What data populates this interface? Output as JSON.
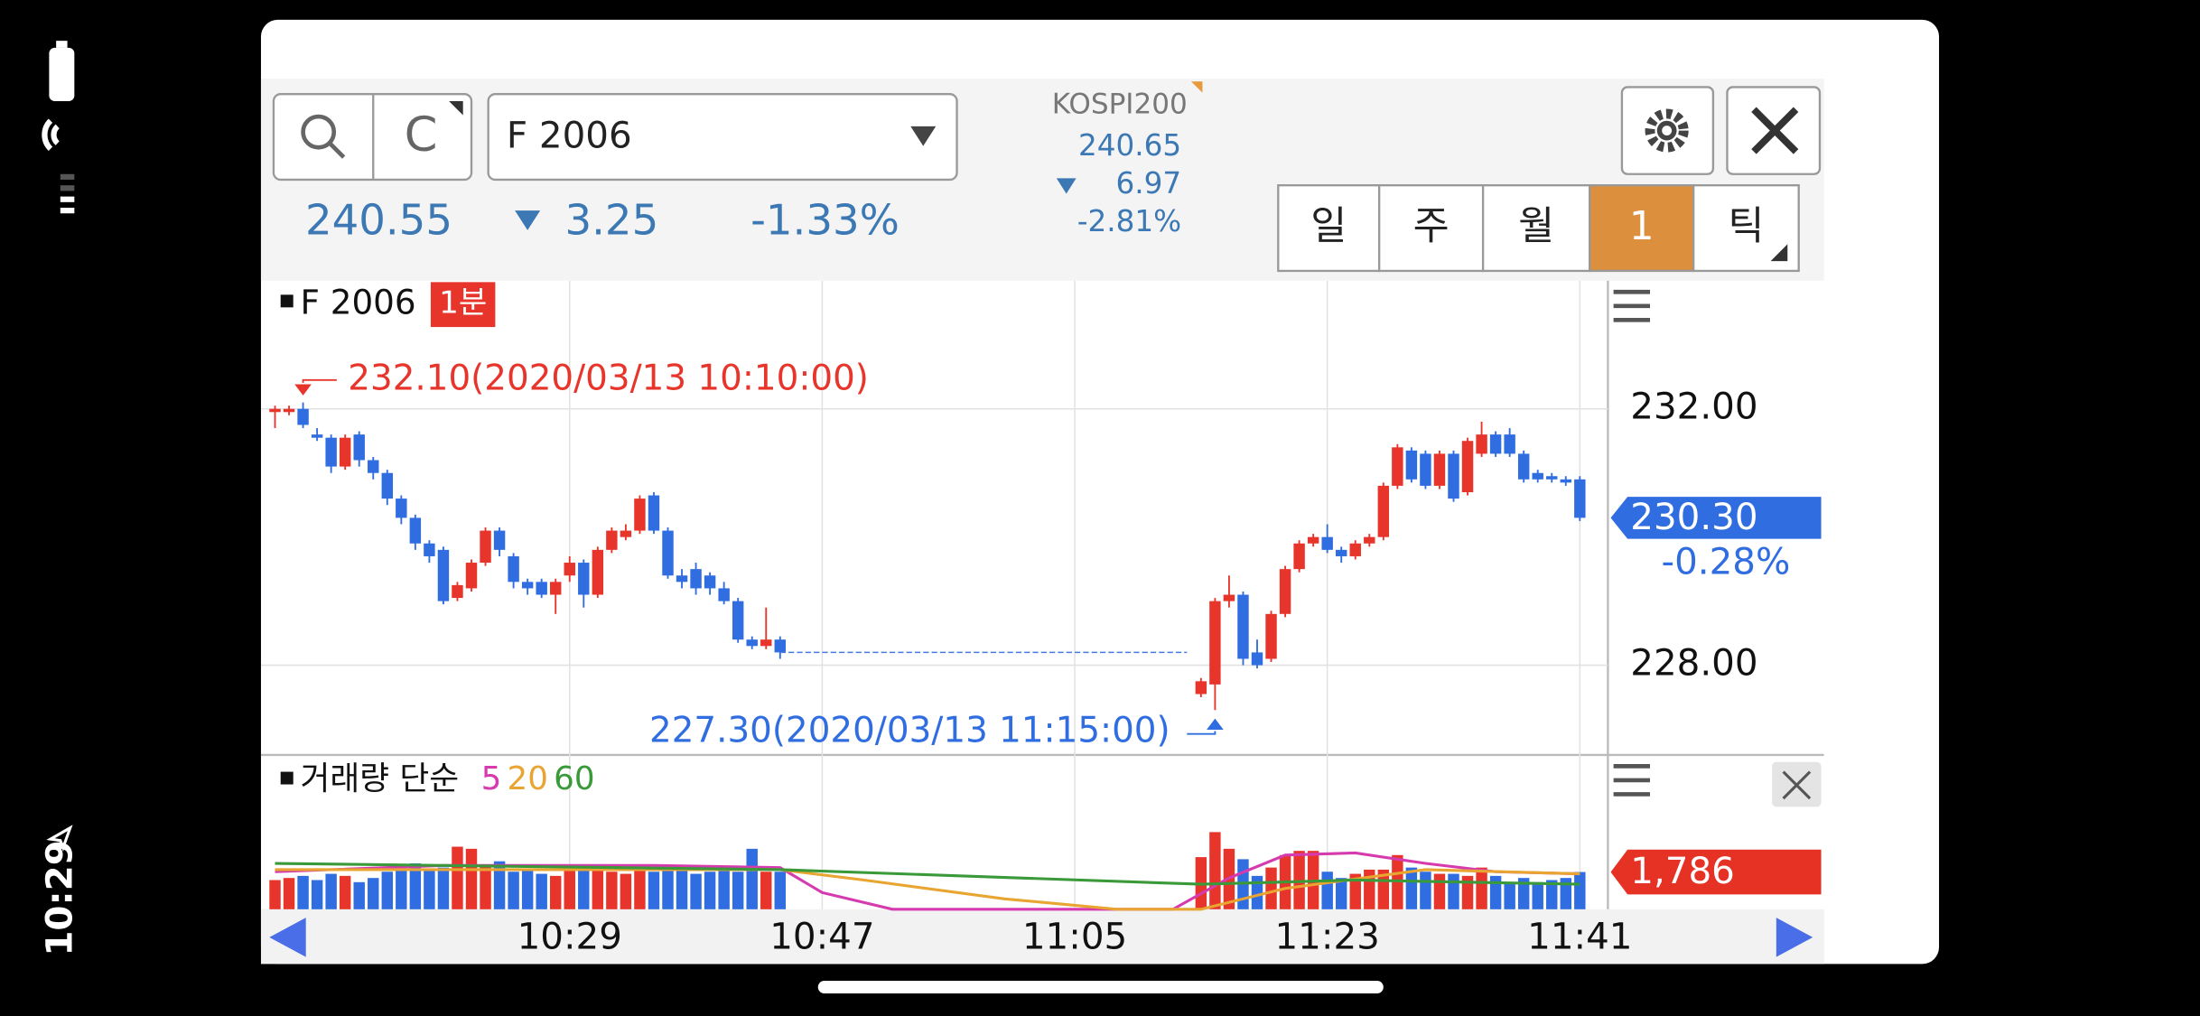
{
  "status_bar": {
    "time": "10:29"
  },
  "toolbar": {
    "search_c": "C",
    "symbol": "F 2006",
    "price": "240.55",
    "change": "3.25",
    "change_pct": "-1.33%",
    "index_name": "KOSPI200",
    "index_price": "240.65",
    "index_change": "6.97",
    "index_change_pct": "-2.81%",
    "periods": [
      "일",
      "주",
      "월",
      "1",
      "틱"
    ],
    "active_period": 3,
    "active_color": "#dc8f3d"
  },
  "chart_data": {
    "type": "candlestick",
    "title": "F 2006",
    "interval": "1분",
    "up_color": "#e8352b",
    "down_color": "#2f6de0",
    "x": [
      "10:08",
      "10:09",
      "10:10",
      "10:11",
      "10:12",
      "10:13",
      "10:14",
      "10:15",
      "10:16",
      "10:17",
      "10:18",
      "10:19",
      "10:20",
      "10:21",
      "10:22",
      "10:23",
      "10:24",
      "10:25",
      "10:26",
      "10:27",
      "10:28",
      "10:29",
      "10:30",
      "10:31",
      "10:32",
      "10:33",
      "10:34",
      "10:35",
      "10:36",
      "10:37",
      "10:38",
      "10:39",
      "10:40",
      "10:41",
      "10:42",
      "10:43",
      "10:44",
      "11:14",
      "11:15",
      "11:16",
      "11:17",
      "11:18",
      "11:19",
      "11:20",
      "11:21",
      "11:22",
      "11:23",
      "11:24",
      "11:25",
      "11:26",
      "11:27",
      "11:28",
      "11:29",
      "11:30",
      "11:31",
      "11:32",
      "11:33",
      "11:34",
      "11:35",
      "11:36",
      "11:37",
      "11:38",
      "11:39",
      "11:40",
      "11:41"
    ],
    "open": [
      231.95,
      231.95,
      232.0,
      231.6,
      231.55,
      231.1,
      231.6,
      231.2,
      231.0,
      230.6,
      230.3,
      229.9,
      229.8,
      229.05,
      229.2,
      229.6,
      230.1,
      229.7,
      229.3,
      229.3,
      229.1,
      229.4,
      229.6,
      229.1,
      229.8,
      230.0,
      230.1,
      230.65,
      230.1,
      229.4,
      229.5,
      229.4,
      229.2,
      229.0,
      228.4,
      228.3,
      228.4,
      227.55,
      227.7,
      229.0,
      229.1,
      228.2,
      228.1,
      228.8,
      229.5,
      229.9,
      230.0,
      229.8,
      229.7,
      229.9,
      230.0,
      230.8,
      231.35,
      231.3,
      230.8,
      231.3,
      230.7,
      231.3,
      231.6,
      231.6,
      231.3,
      231.0,
      230.95,
      230.9,
      230.9
    ],
    "high": [
      232.05,
      232.05,
      232.1,
      231.7,
      231.6,
      231.6,
      231.65,
      231.25,
      231.05,
      230.65,
      230.35,
      229.95,
      229.85,
      229.3,
      229.65,
      230.15,
      230.15,
      229.75,
      229.35,
      229.35,
      229.35,
      229.7,
      229.65,
      229.85,
      230.15,
      230.2,
      230.65,
      230.7,
      230.15,
      229.5,
      229.6,
      229.45,
      229.3,
      229.05,
      228.45,
      228.9,
      228.45,
      227.8,
      229.05,
      229.4,
      229.15,
      228.4,
      228.85,
      229.55,
      229.95,
      230.05,
      230.2,
      229.85,
      229.95,
      230.05,
      230.85,
      231.45,
      231.4,
      231.35,
      231.35,
      231.35,
      231.55,
      231.8,
      231.65,
      231.7,
      231.35,
      231.05,
      231.0,
      230.95,
      230.95
    ],
    "low": [
      231.7,
      231.9,
      231.7,
      231.5,
      231.0,
      231.05,
      231.1,
      230.9,
      230.5,
      230.2,
      229.8,
      229.6,
      228.95,
      229.0,
      229.15,
      229.55,
      229.7,
      229.2,
      229.1,
      229.05,
      228.8,
      229.3,
      228.9,
      229.05,
      229.75,
      229.95,
      230.05,
      230.05,
      229.35,
      229.2,
      229.1,
      229.1,
      228.95,
      228.35,
      228.25,
      228.25,
      228.1,
      227.5,
      227.3,
      228.9,
      228.0,
      227.95,
      228.05,
      228.75,
      229.45,
      229.85,
      229.75,
      229.6,
      229.65,
      229.85,
      229.95,
      230.75,
      230.85,
      230.75,
      230.75,
      230.55,
      230.65,
      231.25,
      231.25,
      231.25,
      230.85,
      230.85,
      230.85,
      230.8,
      230.25
    ],
    "close": [
      232.0,
      232.0,
      231.75,
      231.55,
      231.1,
      231.55,
      231.2,
      231.0,
      230.6,
      230.3,
      229.9,
      229.7,
      229.0,
      229.25,
      229.6,
      230.1,
      229.8,
      229.3,
      229.2,
      229.1,
      229.3,
      229.6,
      229.1,
      229.8,
      230.1,
      230.1,
      230.6,
      230.1,
      229.4,
      229.3,
      229.2,
      229.2,
      229.0,
      228.4,
      228.3,
      228.4,
      228.2,
      227.75,
      229.0,
      229.1,
      228.1,
      228.0,
      228.8,
      229.5,
      229.9,
      230.0,
      229.8,
      229.7,
      229.9,
      230.0,
      230.8,
      231.4,
      230.9,
      230.8,
      231.3,
      230.6,
      231.5,
      231.6,
      231.3,
      231.3,
      230.9,
      230.9,
      230.9,
      230.85,
      230.3
    ],
    "xlim": [
      "10:07",
      "11:43"
    ],
    "xticks": [
      "10:29",
      "10:47",
      "11:05",
      "11:23",
      "11:41"
    ],
    "ylim": [
      226.6,
      234.0
    ],
    "yticks": [
      {
        "value": 232,
        "label": "232.00"
      },
      {
        "value": 228,
        "label": "228.00"
      }
    ],
    "annotations": [
      "232.10(2020/03/13 10:10:00)",
      "227.30(2020/03/13 11:15:00)"
    ],
    "last_price": {
      "value": 230.3,
      "label": "230.30"
    },
    "last_change": "-0.28%",
    "volume": {
      "title": "거래량 단순",
      "values": [
        1400,
        1500,
        1600,
        1400,
        1700,
        1600,
        1300,
        1500,
        1800,
        1900,
        2200,
        1900,
        2000,
        3000,
        2900,
        2100,
        2300,
        1800,
        1900,
        1700,
        1600,
        1900,
        2000,
        1900,
        1800,
        1700,
        2100,
        1800,
        1900,
        2000,
        1700,
        1800,
        1900,
        1800,
        2900,
        1800,
        1800,
        2500,
        3700,
        2900,
        2400,
        1600,
        2000,
        2600,
        2800,
        2800,
        1800,
        1500,
        1700,
        1900,
        1900,
        2600,
        2000,
        1800,
        1700,
        1700,
        1600,
        2000,
        1600,
        1300,
        1500,
        1300,
        1400,
        1500,
        1786
      ],
      "last_label": "1,786",
      "ma": [
        {
          "name": "5",
          "color": "#d63aaf",
          "x": [
            "10:08",
            "10:20",
            "10:35",
            "10:44",
            "10:47",
            "10:52",
            "11:12",
            "11:16",
            "11:20",
            "11:25",
            "11:30",
            "11:35",
            "11:41"
          ],
          "values": [
            1800,
            2100,
            2100,
            2000,
            800,
            0,
            0,
            1500,
            2600,
            2700,
            2200,
            1800,
            1700
          ]
        },
        {
          "name": "20",
          "color": "#e8a531",
          "x": [
            "10:08",
            "10:44",
            "10:50",
            "11:00",
            "11:08",
            "11:14",
            "11:20",
            "11:30",
            "11:41"
          ],
          "values": [
            1900,
            1900,
            1400,
            500,
            0,
            0,
            1000,
            1900,
            1700
          ]
        },
        {
          "name": "60",
          "color": "#3a9a3a",
          "x": [
            "10:08",
            "10:44",
            "11:14",
            "11:25",
            "11:41"
          ],
          "values": [
            2200,
            1900,
            1200,
            1400,
            1200
          ]
        }
      ]
    }
  }
}
